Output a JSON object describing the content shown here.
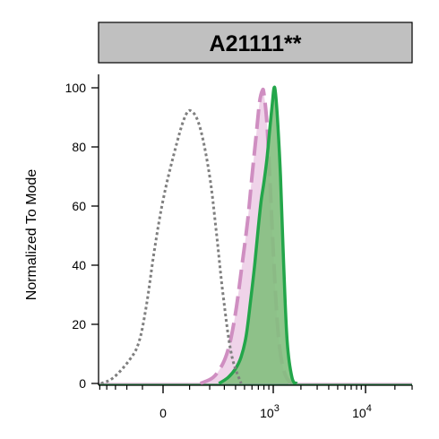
{
  "chart_data": {
    "type": "area",
    "title": "A21111**",
    "xlabel": "",
    "ylabel": "Normalized To Mode",
    "x_scale": "biexponential",
    "ylim": [
      0,
      100
    ],
    "y_ticks": [
      0,
      20,
      40,
      60,
      80,
      100
    ],
    "x_ticks": [
      {
        "value": 0,
        "base": "0",
        "exp": ""
      },
      {
        "value": 1000,
        "base": "10",
        "exp": "3"
      },
      {
        "value": 10000,
        "base": "10",
        "exp": "4"
      }
    ],
    "grid": false,
    "legend": "none",
    "colors": {
      "title_bar_fill": "#c0c0c0",
      "control": "#7f7f7f",
      "pink_fill": "#efd3e9",
      "pink_line": "#cf8ec1",
      "green_fill": "#83bf7e",
      "green_line": "#23a64a"
    },
    "series": [
      {
        "style": "dotted-outline",
        "x": [
          -480,
          -320,
          -180,
          -120,
          -80,
          -40,
          0,
          40,
          80,
          110,
          150,
          200,
          240,
          290,
          360,
          460
        ],
        "y": [
          0,
          2,
          8,
          14,
          26,
          45,
          62,
          78,
          90,
          92,
          86,
          70,
          52,
          30,
          10,
          0
        ]
      },
      {
        "style": "dashed-filled",
        "x": [
          150,
          220,
          280,
          320,
          360,
          410,
          470,
          540,
          600,
          660,
          720,
          770,
          800,
          860,
          920,
          1000,
          1100,
          1200,
          1350,
          1550
        ],
        "y": [
          0,
          2,
          6,
          10,
          16,
          26,
          40,
          55,
          70,
          83,
          95,
          99,
          98,
          88,
          70,
          45,
          22,
          10,
          3,
          0
        ]
      },
      {
        "style": "solid-filled",
        "x": [
          260,
          330,
          400,
          460,
          520,
          580,
          640,
          700,
          750,
          800,
          860,
          920,
          980,
          1020,
          1060,
          1120,
          1200,
          1300,
          1420,
          1600,
          1800
        ],
        "y": [
          0,
          2,
          5,
          9,
          16,
          28,
          40,
          53,
          62,
          68,
          76,
          86,
          95,
          100,
          98,
          88,
          70,
          40,
          14,
          2,
          0
        ]
      }
    ]
  }
}
